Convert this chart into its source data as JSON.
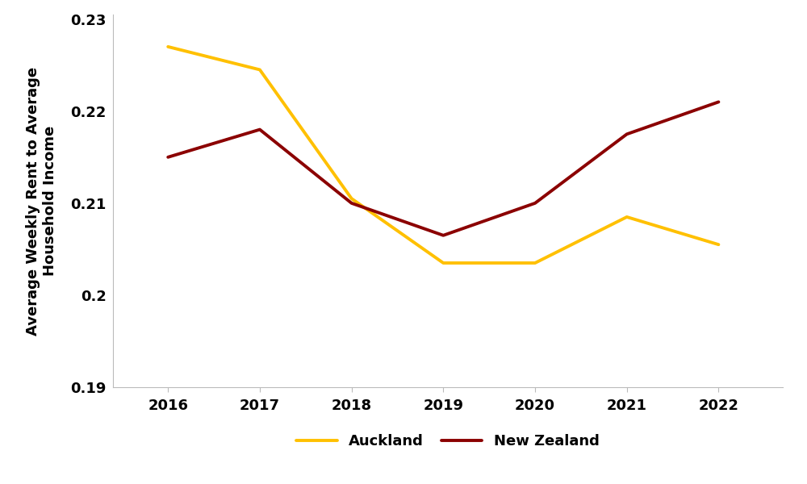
{
  "years": [
    2016,
    2017,
    2018,
    2019,
    2020,
    2021,
    2022
  ],
  "auckland": [
    0.227,
    0.2245,
    0.2105,
    0.2035,
    0.2035,
    0.2085,
    0.2055
  ],
  "new_zealand": [
    0.215,
    0.218,
    0.21,
    0.2065,
    0.21,
    0.2175,
    0.221
  ],
  "auckland_color": "#FFC000",
  "nz_color": "#8B0000",
  "auckland_label": "Auckland",
  "nz_label": "New Zealand",
  "ylabel": "Average Weekly Rent to Average\nHousehold Income",
  "ylim": [
    0.19,
    0.2305
  ],
  "yticks": [
    0.19,
    0.2,
    0.21,
    0.22,
    0.23
  ],
  "ytick_labels": [
    "0.19",
    "0.2",
    "0.21",
    "0.22",
    "0.23"
  ],
  "line_width": 2.8,
  "figsize": [
    10.0,
    6.0
  ],
  "dpi": 100,
  "spine_color": "#bbbbbb",
  "tick_label_fontsize": 13,
  "ylabel_fontsize": 13,
  "legend_fontsize": 13
}
